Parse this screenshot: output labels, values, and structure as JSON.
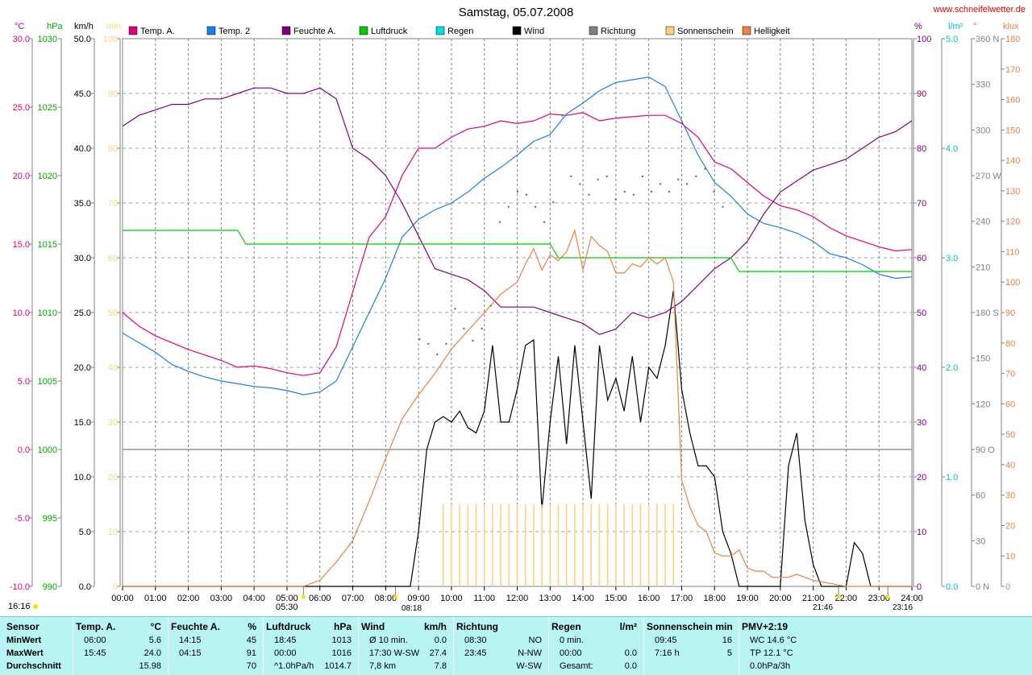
{
  "title": "Samstag, 05.07.2008",
  "site": "www.schneifelwetter.de",
  "clock": "16:16",
  "sunrise_label": "05:30",
  "event_labels": [
    "08:18",
    "21:46",
    "23:16"
  ],
  "legend": [
    {
      "label": "Temp. A.",
      "color": "#e0007f"
    },
    {
      "label": "Temp. 2",
      "color": "#1a7fe6"
    },
    {
      "label": "Feuchte A.",
      "color": "#80007f"
    },
    {
      "label": "Luftdruck",
      "color": "#00cc00"
    },
    {
      "label": "Regen",
      "color": "#00e0e0"
    },
    {
      "label": "Wind",
      "color": "#000000"
    },
    {
      "label": "Richtung",
      "color": "#808080"
    },
    {
      "label": "Sonnenschein",
      "color": "#ffd080"
    },
    {
      "label": "Helligkeit",
      "color": "#f08040"
    }
  ],
  "axis_units": {
    "temp": "°C",
    "press": "hPa",
    "wind": "km/h",
    "sun": "min",
    "hum": "%",
    "rain": "l/m²",
    "dir": "°",
    "lux": "klux"
  },
  "chart_data": {
    "type": "line",
    "title": "Samstag, 05.07.2008",
    "x_ticks": [
      "00:00",
      "01:00",
      "02:00",
      "03:00",
      "04:00",
      "05:00",
      "06:00",
      "07:00",
      "08:00",
      "09:00",
      "10:00",
      "11:00",
      "12:00",
      "13:00",
      "14:00",
      "15:00",
      "16:00",
      "17:00",
      "18:00",
      "19:00",
      "20:00",
      "21:00",
      "22:00",
      "23:00",
      "24:00"
    ],
    "axes": {
      "temp": {
        "unit": "°C",
        "range": [
          -10,
          30
        ],
        "ticks": [
          "30.0",
          "25.0",
          "20.0",
          "15.0",
          "10.0",
          "5.0",
          "0.0",
          "-5.0",
          "-10.0"
        ],
        "color": "#e0007f"
      },
      "press": {
        "unit": "hPa",
        "range": [
          990,
          1030
        ],
        "ticks": [
          "1030",
          "1025",
          "1020",
          "1015",
          "1010",
          "1005",
          "1000",
          "995",
          "990"
        ],
        "color": "#00aa00"
      },
      "wind": {
        "unit": "km/h",
        "range": [
          0,
          50
        ],
        "ticks": [
          "50.0",
          "45.0",
          "40.0",
          "35.0",
          "30.0",
          "25.0",
          "20.0",
          "15.0",
          "10.0",
          "5.0",
          "0.0"
        ],
        "color": "#000000"
      },
      "sun": {
        "unit": "min",
        "range": [
          0,
          100
        ],
        "ticks": [
          "100",
          "90",
          "80",
          "70",
          "60",
          "50",
          "40",
          "30",
          "20",
          "10",
          "0"
        ],
        "color": "#ffd080"
      },
      "hum": {
        "unit": "%",
        "range": [
          0,
          100
        ],
        "ticks": [
          "100",
          "90",
          "80",
          "70",
          "60",
          "50",
          "40",
          "30",
          "20",
          "10",
          "0"
        ],
        "color": "#80007f"
      },
      "rain": {
        "unit": "l/m²",
        "range": [
          0,
          5
        ],
        "ticks": [
          "5.0",
          "4.0",
          "3.0",
          "2.0",
          "1.0",
          "0.0"
        ],
        "color": "#00c0c0"
      },
      "dir": {
        "unit": "°",
        "range": [
          0,
          360
        ],
        "ticks": [
          "360 N",
          "330",
          "300",
          "270 W",
          "240",
          "210",
          "180 S",
          "150",
          "120",
          "90 O",
          "60",
          "30",
          "0 N"
        ],
        "color": "#808080"
      },
      "lux": {
        "unit": "klux",
        "range": [
          0,
          180
        ],
        "ticks": [
          "180",
          "170",
          "160",
          "150",
          "140",
          "130",
          "120",
          "110",
          "100",
          "90",
          "80",
          "70",
          "60",
          "50",
          "40",
          "30",
          "20",
          "10",
          "0"
        ],
        "color": "#f08040"
      }
    },
    "series": [
      {
        "name": "Temp. A.",
        "axis": "temp",
        "color": "#e0007f",
        "x": [
          0,
          0.5,
          1,
          1.5,
          2,
          2.5,
          3,
          3.5,
          4,
          4.5,
          5,
          5.5,
          6,
          6.5,
          7,
          7.5,
          8,
          8.5,
          9,
          9.5,
          10,
          10.5,
          11,
          11.5,
          12,
          12.5,
          13,
          13.5,
          14,
          14.5,
          15,
          15.5,
          16,
          16.5,
          17,
          17.5,
          18,
          18.5,
          19,
          19.5,
          20,
          20.5,
          21,
          21.5,
          22,
          22.5,
          23,
          23.5,
          24
        ],
        "y": [
          10.0,
          9.0,
          8.3,
          7.8,
          7.3,
          6.9,
          6.5,
          6.0,
          6.1,
          5.9,
          5.6,
          5.4,
          5.6,
          7.5,
          11.5,
          15.5,
          17.0,
          20.0,
          22.0,
          22.0,
          22.8,
          23.4,
          23.6,
          24.0,
          23.8,
          24.0,
          24.5,
          24.4,
          24.6,
          24.0,
          24.2,
          24.3,
          24.4,
          24.4,
          23.8,
          22.8,
          21.0,
          20.5,
          19.5,
          18.5,
          17.8,
          17.5,
          17.0,
          16.2,
          15.6,
          15.2,
          14.8,
          14.5,
          14.6
        ]
      },
      {
        "name": "Temp. 2",
        "axis": "temp",
        "color": "#1a7fe6",
        "x": [
          0,
          0.5,
          1,
          1.5,
          2,
          2.5,
          3,
          3.5,
          4,
          4.5,
          5,
          5.5,
          6,
          6.5,
          7,
          7.5,
          8,
          8.5,
          9,
          9.5,
          10,
          10.5,
          11,
          11.5,
          12,
          12.5,
          13,
          13.5,
          14,
          14.5,
          15,
          15.5,
          16,
          16.5,
          17,
          17.5,
          18,
          18.5,
          19,
          19.5,
          20,
          20.5,
          21,
          21.5,
          22,
          22.5,
          23,
          23.5,
          24
        ],
        "y": [
          8.5,
          7.8,
          7.1,
          6.2,
          5.7,
          5.3,
          5.0,
          4.8,
          4.6,
          4.5,
          4.3,
          4.0,
          4.2,
          5.0,
          7.5,
          10.0,
          12.5,
          15.5,
          16.8,
          17.5,
          18.0,
          18.8,
          19.8,
          20.6,
          21.5,
          22.5,
          23.0,
          24.5,
          25.3,
          26.2,
          26.8,
          27.0,
          27.2,
          26.5,
          24.0,
          21.5,
          19.5,
          18.5,
          17.2,
          16.5,
          16.2,
          15.8,
          15.2,
          14.3,
          14.0,
          13.5,
          12.8,
          12.5,
          12.6
        ]
      },
      {
        "name": "Feuchte A.",
        "axis": "hum",
        "color": "#80007f",
        "x": [
          0,
          0.5,
          1,
          1.5,
          2,
          2.5,
          3,
          3.5,
          4,
          4.5,
          5,
          5.5,
          6,
          6.5,
          7,
          7.5,
          8,
          8.5,
          9,
          9.5,
          10,
          10.5,
          11,
          11.5,
          12,
          12.5,
          13,
          13.5,
          14,
          14.5,
          15,
          15.5,
          16,
          16.5,
          17,
          17.5,
          18,
          18.5,
          19,
          19.5,
          20,
          20.5,
          21,
          21.5,
          22,
          22.5,
          23,
          23.5,
          24
        ],
        "y": [
          84,
          86,
          87,
          88,
          88,
          89,
          89,
          90,
          91,
          91,
          90,
          90,
          91,
          89,
          80,
          78,
          75,
          70,
          64,
          58,
          57,
          56,
          54,
          51,
          51,
          51,
          50,
          49,
          48,
          46,
          47,
          50,
          49,
          50,
          52,
          55,
          58,
          60,
          63,
          68,
          72,
          74,
          76,
          77,
          78,
          80,
          82,
          83,
          85
        ]
      },
      {
        "name": "Luftdruck",
        "axis": "press",
        "color": "#00cc00",
        "x": [
          0,
          3.5,
          3.75,
          8,
          13,
          13.25,
          18.5,
          18.75,
          24
        ],
        "y": [
          1016,
          1016,
          1015,
          1015,
          1015,
          1014,
          1014,
          1013,
          1013
        ]
      },
      {
        "name": "Wind",
        "axis": "wind",
        "color": "#000000",
        "x": [
          0,
          8.4,
          8.5,
          8.75,
          9.0,
          9.25,
          9.5,
          9.75,
          10,
          10.25,
          10.5,
          10.75,
          11,
          11.25,
          11.5,
          11.75,
          12,
          12.25,
          12.5,
          12.75,
          13,
          13.25,
          13.5,
          13.75,
          14,
          14.25,
          14.5,
          14.75,
          15,
          15.25,
          15.5,
          15.75,
          16,
          16.25,
          16.5,
          16.75,
          17,
          17.25,
          17.5,
          17.75,
          18,
          18.25,
          18.5,
          18.75,
          19,
          19.25,
          19.5,
          19.75,
          20,
          20.25,
          20.5,
          20.75,
          21,
          21.25,
          21.5,
          21.75,
          22,
          22.25,
          22.5,
          22.75,
          23,
          23.25,
          24
        ],
        "y": [
          0,
          0,
          0,
          0,
          5,
          12.5,
          15,
          15.5,
          15,
          16,
          14.5,
          14,
          16,
          22,
          15,
          15,
          18,
          22,
          22.5,
          7,
          15,
          21,
          13,
          22,
          15,
          8,
          22,
          17,
          19,
          16,
          21,
          15,
          20,
          19,
          22,
          27,
          18,
          14,
          11,
          11,
          10,
          5,
          3,
          0,
          0,
          0,
          0,
          0,
          0,
          11,
          14,
          6,
          2,
          0,
          0,
          0,
          0,
          4,
          3,
          0,
          0,
          0,
          0
        ]
      },
      {
        "name": "Helligkeit",
        "axis": "lux",
        "color": "#f08040",
        "x": [
          0,
          5.5,
          6,
          6.5,
          7,
          7.5,
          8,
          8.5,
          9,
          9.5,
          10,
          10.5,
          11,
          11.5,
          12,
          12.25,
          12.5,
          12.75,
          13,
          13.25,
          13.5,
          13.75,
          14,
          14.25,
          14.5,
          14.75,
          15,
          15.25,
          15.5,
          15.75,
          16,
          16.25,
          16.5,
          16.75,
          17,
          17.25,
          17.5,
          17.75,
          18,
          18.25,
          18.5,
          18.75,
          19,
          19.25,
          19.5,
          19.75,
          20,
          20.25,
          20.5,
          21,
          21.5,
          22,
          22.5,
          23,
          24
        ],
        "y": [
          0,
          0,
          2,
          8,
          15,
          28,
          42,
          55,
          63,
          70,
          78,
          84,
          90,
          96,
          100,
          106,
          111,
          104,
          109,
          107,
          110,
          117,
          104,
          115,
          112,
          110,
          103,
          103,
          106,
          105,
          108,
          106,
          108,
          100,
          35,
          26,
          20,
          18,
          11,
          10,
          10,
          12,
          6,
          5,
          5,
          3,
          3,
          3,
          4,
          2,
          1,
          0,
          0,
          0,
          0
        ]
      },
      {
        "name": "Sonnenschein",
        "axis": "sun",
        "color": "#ffd080",
        "bars_from": 9.75,
        "bars_to": 16.75,
        "bar_step": 0.25,
        "bar_value": 15
      }
    ],
    "direction_points_deg": [
      163,
      160,
      153,
      160,
      183,
      170,
      162,
      170,
      185,
      240,
      250,
      260,
      258,
      250,
      240,
      253,
      310,
      270,
      265,
      258,
      268,
      270,
      255,
      260,
      258,
      270,
      260,
      265,
      260,
      268,
      265,
      270,
      275,
      260,
      250
    ],
    "reference_lines": [
      {
        "axis": "temp",
        "value": 0.0,
        "color": "#808080"
      }
    ],
    "grid": true
  },
  "stats_table": {
    "cols": [
      {
        "header": "Sensor",
        "unit": "",
        "rows": [
          "MinWert",
          "MaxWert",
          "Durchschnitt"
        ]
      },
      {
        "header": "Temp. A.",
        "unit": "°C",
        "rows": [
          [
            "06:00",
            "5.6"
          ],
          [
            "15:45",
            "24.0"
          ],
          [
            "",
            "15.98"
          ]
        ]
      },
      {
        "header": "Feuchte A.",
        "unit": "%",
        "rows": [
          [
            "14:15",
            "45"
          ],
          [
            "04:15",
            "91"
          ],
          [
            "",
            "70"
          ]
        ]
      },
      {
        "header": "Luftdruck",
        "unit": "hPa",
        "rows": [
          [
            "18:45",
            "1013"
          ],
          [
            "00:00",
            "1016"
          ],
          [
            "^1.0hPa/h",
            "1014.7"
          ]
        ]
      },
      {
        "header": "Wind",
        "unit": "km/h",
        "rows": [
          [
            "Ø 10 min.",
            "0.0"
          ],
          [
            "17:30   W-SW",
            "27.4"
          ],
          [
            "7,8 km",
            "7.8"
          ]
        ]
      },
      {
        "header": "Richtung",
        "unit": "",
        "rows": [
          [
            "08:30",
            "NO"
          ],
          [
            "23:45",
            "N-NW"
          ],
          [
            "",
            "W-SW"
          ]
        ]
      },
      {
        "header": "Regen",
        "unit": "l/m²",
        "rows": [
          [
            "0 min.",
            ""
          ],
          [
            "00:00",
            "0.0"
          ],
          [
            "Gesamt:",
            "0.0"
          ]
        ]
      },
      {
        "header": "Sonnenschein min",
        "unit": "",
        "rows": [
          [
            "09:45",
            "16"
          ],
          [
            "7:16 h",
            "5"
          ],
          [
            "",
            ""
          ]
        ]
      },
      {
        "header": "PMV+2:19",
        "unit": "",
        "rows": [
          [
            "WC 14.6 °C",
            ""
          ],
          [
            "TP 12.1 °C",
            ""
          ],
          [
            "0.0hPa/3h",
            ""
          ]
        ]
      }
    ]
  }
}
